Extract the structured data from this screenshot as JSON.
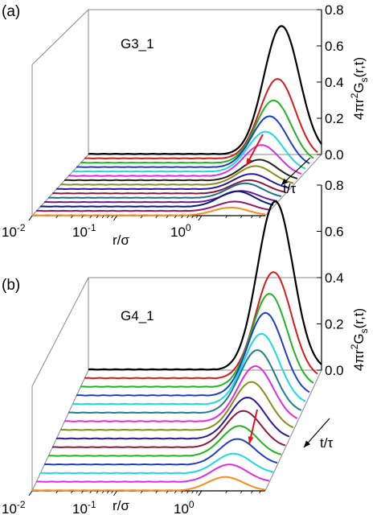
{
  "chart_data": [
    {
      "type": "line",
      "panel_label": "(a)",
      "tag": "G3_1",
      "xlabel": "r/σ",
      "xscale": "log",
      "x_ticks": [
        "10-2",
        "10-1",
        "100"
      ],
      "zlabel": "4πr2Gs(r,t)",
      "zlim": [
        0.0,
        0.8
      ],
      "z_ticks": [
        "0.0",
        "0.2",
        "0.4",
        "0.6",
        "0.8"
      ],
      "depth_label": "t/τ",
      "annotation": "red arrow marking the shoulder near r/σ ≈ 3",
      "series": [
        {
          "color": "#000000",
          "peak_r": 1.9,
          "peak_value": 0.71
        },
        {
          "color": "#d81b1b",
          "peak_r": 1.9,
          "peak_value": 0.45
        },
        {
          "color": "#1fb51f",
          "peak_r": 1.9,
          "peak_value": 0.36
        },
        {
          "color": "#1f3ec7",
          "peak_r": 1.9,
          "peak_value": 0.3
        },
        {
          "color": "#1ed8e2",
          "peak_r": 1.9,
          "peak_value": 0.24
        },
        {
          "color": "#e02ce0",
          "peak_r": 1.9,
          "peak_value": 0.19
        },
        {
          "color": "#222222",
          "peak_r": 2.0,
          "peak_value": 0.13
        },
        {
          "color": "#8c8c18",
          "peak_r": 2.0,
          "peak_value": 0.12
        },
        {
          "color": "#2a1a9a",
          "peak_r": 2.0,
          "peak_value": 0.1
        },
        {
          "color": "#8b1a3a",
          "peak_r": 2.1,
          "peak_value": 0.09
        },
        {
          "color": "#1e6e8e",
          "peak_r": 2.1,
          "peak_value": 0.1
        },
        {
          "color": "#6a1aa0",
          "peak_r": 2.1,
          "peak_value": 0.08
        },
        {
          "color": "#0a1e70",
          "peak_r": 2.1,
          "peak_value": 0.11
        },
        {
          "color": "#8c1a6a",
          "peak_r": 2.2,
          "peak_value": 0.07
        },
        {
          "color": "#ff8a1a",
          "peak_r": 2.2,
          "peak_value": 0.06
        }
      ]
    },
    {
      "type": "line",
      "panel_label": "(b)",
      "tag": "G4_1",
      "xlabel": "r/σ",
      "xscale": "log",
      "x_ticks": [
        "10-2",
        "10-1",
        "100"
      ],
      "zlabel": "4πr2Gs(r,t)",
      "zlim": [
        0.0,
        0.8
      ],
      "z_ticks": [
        "0.0",
        "0.2",
        "0.4",
        "0.6",
        "0.8"
      ],
      "depth_label": "t/τ",
      "annotation": "red arrow marking the shoulder near r/σ ≈ 3",
      "series": [
        {
          "color": "#000000",
          "peak_r": 1.6,
          "peak_value": 0.73
        },
        {
          "color": "#d81b1b",
          "peak_r": 1.7,
          "peak_value": 0.47
        },
        {
          "color": "#1fb51f",
          "peak_r": 1.7,
          "peak_value": 0.42
        },
        {
          "color": "#1f3ec7",
          "peak_r": 1.7,
          "peak_value": 0.38
        },
        {
          "color": "#1ed8e2",
          "peak_r": 1.7,
          "peak_value": 0.33
        },
        {
          "color": "#1e7e8e",
          "peak_r": 1.7,
          "peak_value": 0.3
        },
        {
          "color": "#e02ce0",
          "peak_r": 1.8,
          "peak_value": 0.27
        },
        {
          "color": "#8c8c18",
          "peak_r": 1.8,
          "peak_value": 0.24
        },
        {
          "color": "#2a1a9a",
          "peak_r": 1.8,
          "peak_value": 0.21
        },
        {
          "color": "#8b1a3a",
          "peak_r": 1.8,
          "peak_value": 0.19
        },
        {
          "color": "#1fb51f",
          "peak_r": 1.8,
          "peak_value": 0.16
        },
        {
          "color": "#1f3ec7",
          "peak_r": 1.9,
          "peak_value": 0.14
        },
        {
          "color": "#1ed8e2",
          "peak_r": 1.9,
          "peak_value": 0.11
        },
        {
          "color": "#e02ce0",
          "peak_r": 1.9,
          "peak_value": 0.1
        },
        {
          "color": "#ff8a1a",
          "peak_r": 1.9,
          "peak_value": 0.08
        }
      ]
    }
  ]
}
